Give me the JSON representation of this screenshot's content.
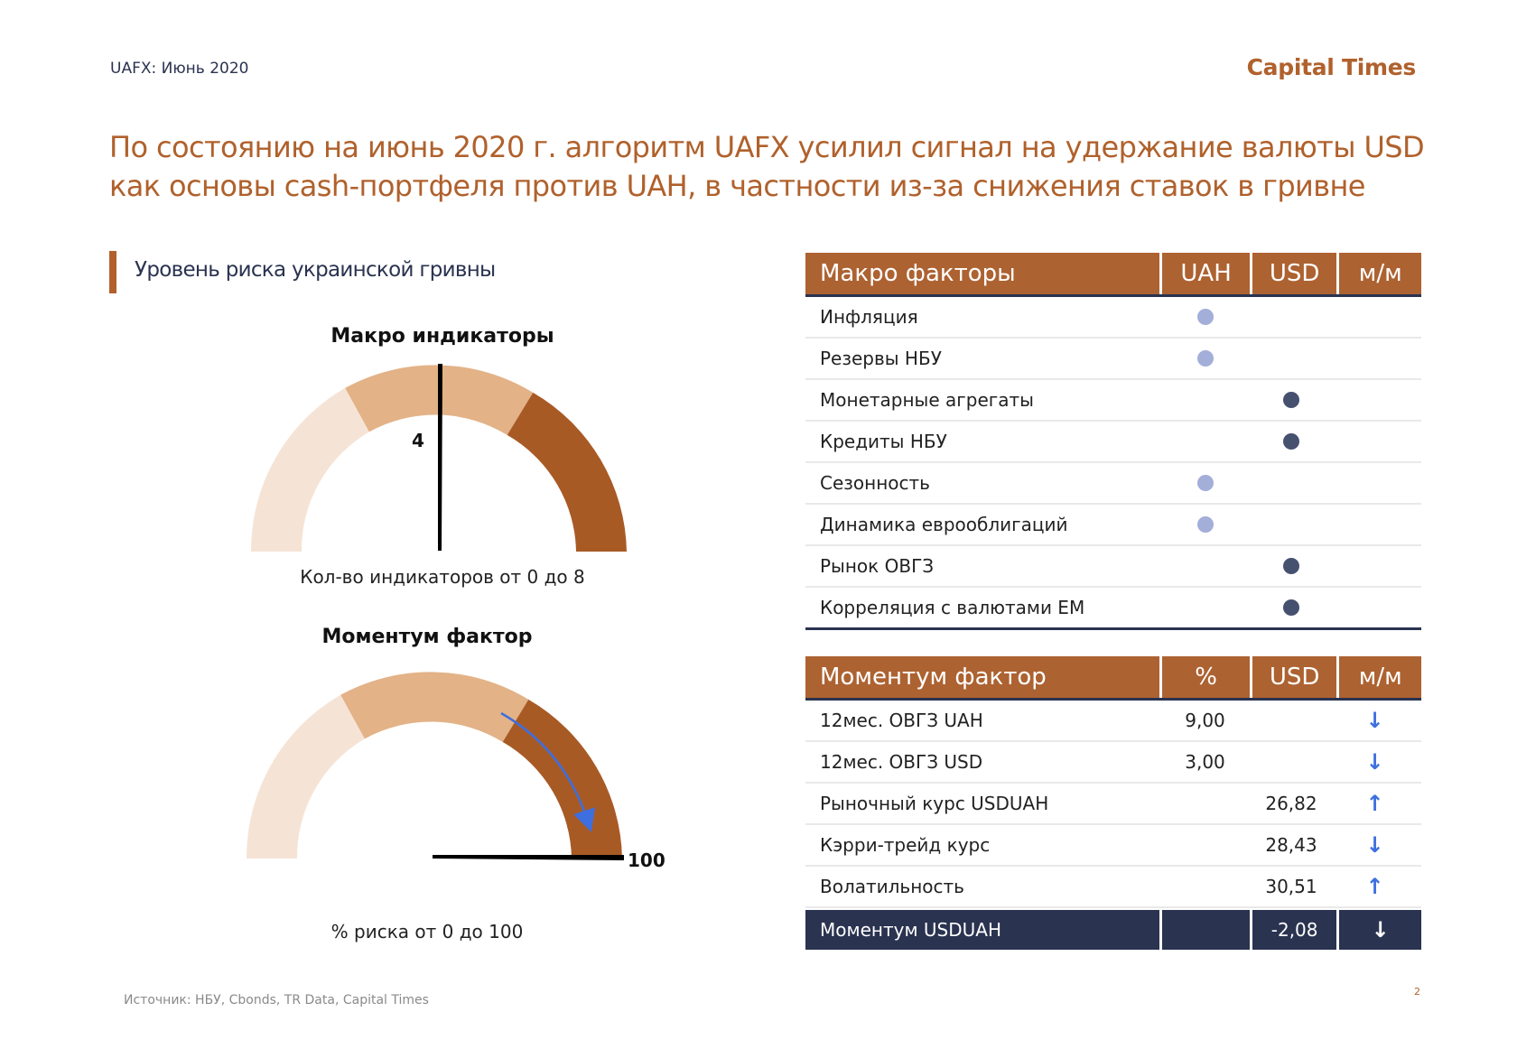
{
  "header": {
    "left_label": "UAFX: Июнь 2020",
    "brand": "Capital Times"
  },
  "headline": {
    "line1": "По состоянию на июнь 2020 г. алгоритм UAFX усилил сигнал на удержание валюты USD",
    "line2": "как основы cash-портфеля против UAH, в частности из-за снижения ставок в гривне"
  },
  "section_title": "Уровень риска украинской гривны",
  "gauges": [
    {
      "title": "Макро индикаторы",
      "value_label": "4",
      "value": 4,
      "min": 0,
      "max": 8,
      "caption": "Кол-во индикаторов от 0 до 8"
    },
    {
      "title": "Моментум фактор",
      "value_label": "100",
      "value": 100,
      "min": 0,
      "max": 100,
      "caption": "% риска от 0 до 100"
    }
  ],
  "colors": {
    "accent": "#b0612c",
    "navy": "#2a3350",
    "gauge_light": "#f5e4d6",
    "gauge_mid": "#e3b287",
    "gauge_dark": "#a85a25",
    "dot_uah": "#a3aed9",
    "dot_usd": "#46516f",
    "arrow": "#3d6fe0"
  },
  "macro_table": {
    "headers": [
      "Макро факторы",
      "UAH",
      "USD",
      "м/м"
    ],
    "rows": [
      {
        "label": "Инфляция",
        "signal": "UAH"
      },
      {
        "label": "Резервы НБУ",
        "signal": "UAH"
      },
      {
        "label": "Монетарные агрегаты",
        "signal": "USD"
      },
      {
        "label": "Кредиты НБУ",
        "signal": "USD"
      },
      {
        "label": "Сезонность",
        "signal": "UAH"
      },
      {
        "label": "Динамика еврооблигаций",
        "signal": "UAH"
      },
      {
        "label": "Рынок ОВГЗ",
        "signal": "USD"
      },
      {
        "label": "Корреляция с валютами ЕМ",
        "signal": "USD"
      }
    ]
  },
  "momentum_table": {
    "headers": [
      "Моментум фактор",
      "%",
      "USD",
      "м/м"
    ],
    "rows": [
      {
        "label": "12мес. ОВГЗ UAH",
        "pct": "9,00",
        "usd": "",
        "arrow": "↓"
      },
      {
        "label": "12мес. ОВГЗ USD",
        "pct": "3,00",
        "usd": "",
        "arrow": "↓"
      },
      {
        "label": "Рыночный курс USDUAH",
        "pct": "",
        "usd": "26,82",
        "arrow": "↑"
      },
      {
        "label": "Кэрри-трейд курс",
        "pct": "",
        "usd": "28,43",
        "arrow": "↓"
      },
      {
        "label": "Волатильность",
        "pct": "",
        "usd": "30,51",
        "arrow": "↑"
      }
    ],
    "total": {
      "label": "Моментум USDUAH",
      "pct": "",
      "usd": "-2,08",
      "arrow": "↓"
    }
  },
  "source": "Источник: НБУ, Cbonds, TR Data, Capital Times",
  "page_number": "2"
}
